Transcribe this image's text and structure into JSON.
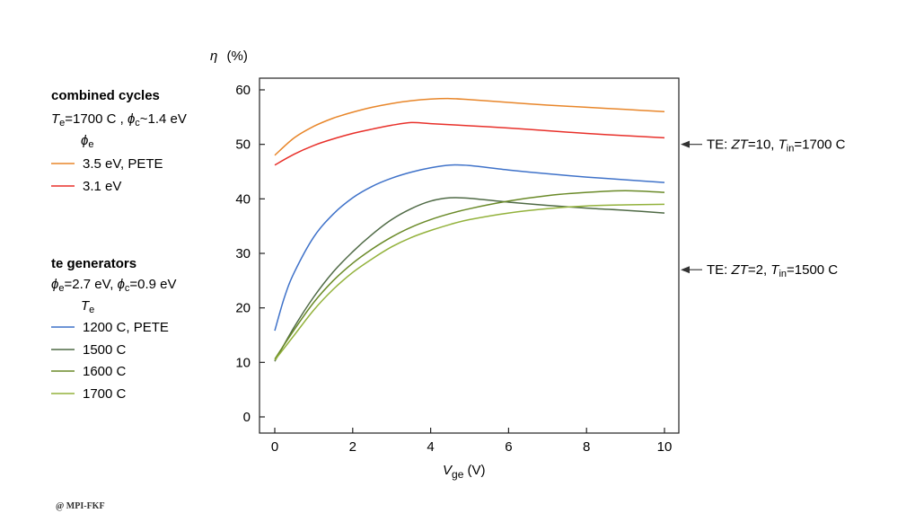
{
  "chart_data": {
    "type": "line",
    "xlim": [
      0,
      10
    ],
    "ylim": [
      0,
      60
    ],
    "x_ticks": [
      0,
      2,
      4,
      6,
      8,
      10
    ],
    "y_ticks": [
      0,
      10,
      20,
      30,
      40,
      50,
      60
    ],
    "xlabel": {
      "main": "V",
      "sub": "ge",
      "unit": " (V)"
    },
    "ylabel": {
      "main": "η",
      "unit": "(%)"
    },
    "grid": false,
    "legend_groups": [
      {
        "heading": "combined cycles",
        "params": [
          {
            "sym": "T",
            "sub": "e",
            "rest": "=1700 C ,"
          },
          {
            "sym": "ϕ",
            "sub": "c",
            "rest": "~1.4 eV"
          }
        ],
        "param_label": {
          "sym": "ϕ",
          "sub": "e"
        },
        "series_names": [
          "3.5 eV,  PETE",
          "3.1 eV"
        ]
      },
      {
        "heading": "te generators",
        "params": [
          {
            "sym": "ϕ",
            "sub": "e",
            "rest": "=2.7 eV,"
          },
          {
            "sym": "ϕ",
            "sub": "c",
            "rest": "=0.9 eV"
          }
        ],
        "param_label": {
          "sym": "T",
          "sub": "e"
        },
        "series_names": [
          "1200 C,  PETE",
          "1500 C",
          "1600 C",
          "1700 C"
        ]
      }
    ],
    "series": [
      {
        "name": "3.5 eV,  PETE",
        "color": "#E8862A",
        "points": [
          [
            0,
            48
          ],
          [
            0.5,
            51.2
          ],
          [
            1,
            53.3
          ],
          [
            1.5,
            54.8
          ],
          [
            2,
            55.9
          ],
          [
            2.5,
            56.8
          ],
          [
            3,
            57.5
          ],
          [
            3.5,
            58
          ],
          [
            4,
            58.3
          ],
          [
            4.5,
            58.4
          ],
          [
            5,
            58.2
          ],
          [
            6,
            57.7
          ],
          [
            7,
            57.2
          ],
          [
            8,
            56.8
          ],
          [
            9,
            56.4
          ],
          [
            10,
            56
          ]
        ]
      },
      {
        "name": "3.1 eV",
        "color": "#E8302A",
        "points": [
          [
            0,
            46.2
          ],
          [
            0.5,
            48.2
          ],
          [
            1,
            49.8
          ],
          [
            1.5,
            51
          ],
          [
            2,
            52
          ],
          [
            2.5,
            52.8
          ],
          [
            3,
            53.5
          ],
          [
            3.5,
            54
          ],
          [
            4,
            53.8
          ],
          [
            5,
            53.4
          ],
          [
            6,
            53
          ],
          [
            7,
            52.5
          ],
          [
            8,
            52
          ],
          [
            9,
            51.6
          ],
          [
            10,
            51.2
          ]
        ]
      },
      {
        "name": "1200 C,  PETE",
        "color": "#3F72C9",
        "points": [
          [
            0,
            15.8
          ],
          [
            0.25,
            22
          ],
          [
            0.5,
            26.5
          ],
          [
            1,
            33
          ],
          [
            1.5,
            37.2
          ],
          [
            2,
            40.2
          ],
          [
            2.5,
            42.3
          ],
          [
            3,
            43.8
          ],
          [
            3.5,
            44.9
          ],
          [
            4,
            45.7
          ],
          [
            4.5,
            46.2
          ],
          [
            5,
            46.1
          ],
          [
            6,
            45.3
          ],
          [
            7,
            44.6
          ],
          [
            8,
            44
          ],
          [
            9,
            43.5
          ],
          [
            10,
            43
          ]
        ]
      },
      {
        "name": "1500 C",
        "color": "#4F6A45",
        "points": [
          [
            0,
            10.2
          ],
          [
            0.5,
            16.5
          ],
          [
            1,
            22
          ],
          [
            1.5,
            26.6
          ],
          [
            2,
            30.3
          ],
          [
            2.5,
            33.5
          ],
          [
            3,
            36.2
          ],
          [
            3.5,
            38.2
          ],
          [
            4,
            39.6
          ],
          [
            4.5,
            40.2
          ],
          [
            5,
            40.1
          ],
          [
            6,
            39.4
          ],
          [
            7,
            38.8
          ],
          [
            8,
            38.3
          ],
          [
            9,
            37.9
          ],
          [
            10,
            37.4
          ]
        ]
      },
      {
        "name": "1600 C",
        "color": "#6A8A28",
        "points": [
          [
            0,
            10.6
          ],
          [
            0.5,
            16
          ],
          [
            1,
            21
          ],
          [
            1.5,
            25
          ],
          [
            2,
            28.2
          ],
          [
            2.5,
            30.8
          ],
          [
            3,
            33
          ],
          [
            3.5,
            34.8
          ],
          [
            4,
            36.2
          ],
          [
            4.5,
            37.3
          ],
          [
            5,
            38.2
          ],
          [
            6,
            39.6
          ],
          [
            7,
            40.6
          ],
          [
            8,
            41.2
          ],
          [
            9,
            41.5
          ],
          [
            10,
            41.2
          ]
        ]
      },
      {
        "name": "1700 C",
        "color": "#93B23C",
        "points": [
          [
            0,
            10.4
          ],
          [
            0.5,
            15
          ],
          [
            1,
            19.6
          ],
          [
            1.5,
            23.4
          ],
          [
            2,
            26.5
          ],
          [
            2.5,
            29
          ],
          [
            3,
            31.2
          ],
          [
            3.5,
            32.9
          ],
          [
            4,
            34.2
          ],
          [
            4.5,
            35.3
          ],
          [
            5,
            36.2
          ],
          [
            6,
            37.4
          ],
          [
            7,
            38.2
          ],
          [
            8,
            38.7
          ],
          [
            9,
            38.9
          ],
          [
            10,
            39
          ]
        ]
      }
    ],
    "annotations": [
      {
        "y": 50,
        "prefix": "TE:  ",
        "zt": "ZT",
        "zt_val": "=10, ",
        "tin": "T",
        "tin_sub": "in",
        "tin_val": "=1700 C"
      },
      {
        "y": 27,
        "prefix": "TE:  ",
        "zt": "ZT",
        "zt_val": "=2, ",
        "tin": "T",
        "tin_sub": "in",
        "tin_val": "=1500 C"
      }
    ]
  },
  "footer": {
    "copyright": "@ MPI-FKF"
  }
}
